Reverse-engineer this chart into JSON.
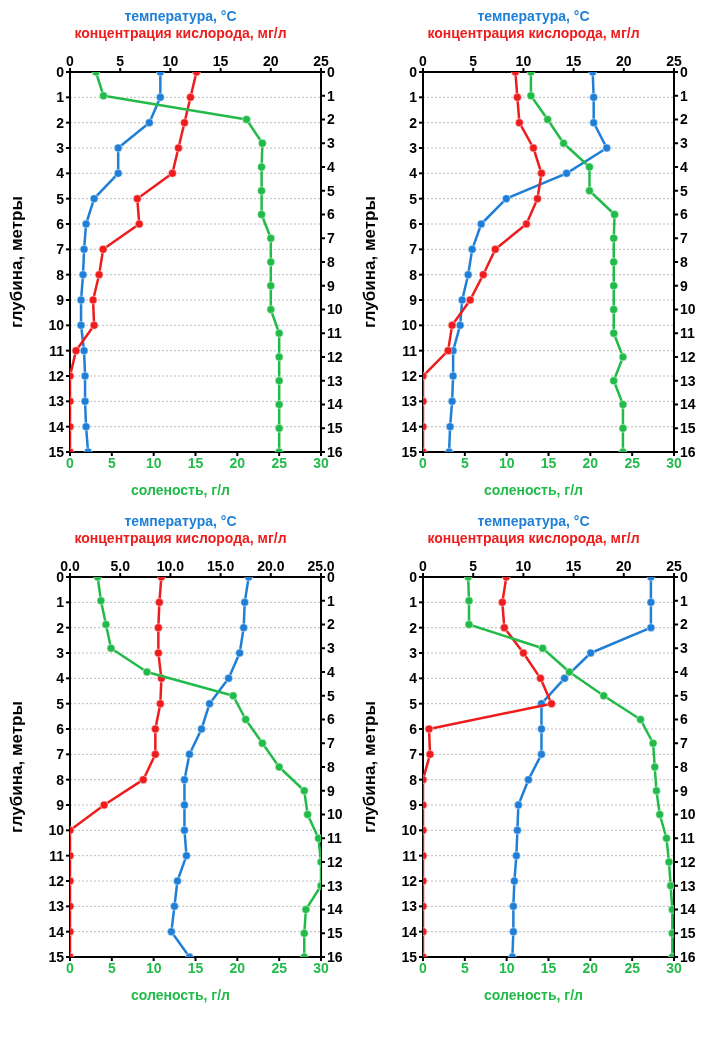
{
  "chart_data": [
    {
      "type": "line",
      "ylabel": "глубина, метры",
      "xlim": [
        0,
        30
      ],
      "xticks": [
        0,
        5,
        10,
        15,
        20,
        25,
        30
      ],
      "x2lim": [
        0,
        25
      ],
      "x2ticks": [
        0,
        5,
        10,
        15,
        20,
        25
      ],
      "ylim": [
        15,
        0
      ],
      "yticks": [
        0,
        1,
        2,
        3,
        4,
        5,
        6,
        7,
        8,
        9,
        10,
        11,
        12,
        13,
        14,
        15
      ],
      "y2lim": [
        16,
        0
      ],
      "y2ticks": [
        0,
        1,
        2,
        3,
        4,
        5,
        6,
        7,
        8,
        9,
        10,
        11,
        12,
        13,
        14,
        15,
        16
      ],
      "grid": "y",
      "marker": "circle",
      "series": [
        {
          "name": "температура, °C",
          "color": "#1f7fd6",
          "axis": "x2",
          "x": [
            9.0,
            9.0,
            7.9,
            4.8,
            4.8,
            2.4,
            1.6,
            1.4,
            1.3,
            1.1,
            1.1,
            1.4,
            1.5,
            1.5,
            1.6,
            1.8
          ],
          "values": [
            0,
            1,
            2,
            3,
            4,
            5,
            6,
            7,
            8,
            9,
            10,
            11,
            12,
            13,
            14,
            15
          ]
        },
        {
          "name": "концентрация кислорода, мг/л",
          "color": "#ee1c1c",
          "axis": "x2",
          "x": [
            12.6,
            12.0,
            11.4,
            10.8,
            10.2,
            6.7,
            6.9,
            3.3,
            2.9,
            2.3,
            2.4,
            0.6,
            0,
            0,
            0,
            0
          ],
          "values": [
            0,
            1,
            2,
            3,
            4,
            5,
            6,
            7,
            8,
            9,
            10,
            11,
            12,
            13,
            14,
            15
          ]
        },
        {
          "name": "соленость, г/л",
          "color": "#22bb4a",
          "axis": "y2",
          "x": [
            3.1,
            4.0,
            21.1,
            23.0,
            22.9,
            22.9,
            22.9,
            24.0,
            24.0,
            24.0,
            24.0,
            25.0,
            25.0,
            25.0,
            25.0,
            25.0,
            25.0
          ],
          "values": [
            0,
            1,
            2,
            3,
            4,
            5,
            6,
            7,
            8,
            9,
            10,
            11,
            12,
            13,
            14,
            15,
            16
          ]
        }
      ]
    },
    {
      "type": "line",
      "ylabel": "глубина, метры",
      "xlim": [
        0,
        30
      ],
      "xticks": [
        0,
        5,
        10,
        15,
        20,
        25,
        30
      ],
      "x2lim": [
        0,
        25
      ],
      "x2ticks": [
        0,
        5,
        10,
        15,
        20,
        25
      ],
      "ylim": [
        15,
        0
      ],
      "yticks": [
        0,
        1,
        2,
        3,
        4,
        5,
        6,
        7,
        8,
        9,
        10,
        11,
        12,
        13,
        14,
        15
      ],
      "y2lim": [
        16,
        0
      ],
      "y2ticks": [
        0,
        1,
        2,
        3,
        4,
        5,
        6,
        7,
        8,
        9,
        10,
        11,
        12,
        13,
        14,
        15,
        16
      ],
      "grid": "y",
      "marker": "circle",
      "series": [
        {
          "name": "температура, °C",
          "color": "#1f7fd6",
          "axis": "x2",
          "x": [
            16.9,
            17.0,
            17.0,
            18.3,
            14.3,
            8.3,
            5.8,
            4.9,
            4.5,
            3.9,
            3.7,
            3.0,
            3.0,
            2.9,
            2.7,
            2.6
          ],
          "values": [
            0,
            1,
            2,
            3,
            4,
            5,
            6,
            7,
            8,
            9,
            10,
            11,
            12,
            13,
            14,
            15
          ]
        },
        {
          "name": "концентрация кислорода, мг/л",
          "color": "#ee1c1c",
          "axis": "x2",
          "x": [
            9.2,
            9.4,
            9.6,
            11.0,
            11.8,
            11.4,
            10.3,
            7.2,
            6.0,
            4.7,
            2.9,
            2.5,
            0,
            0,
            0,
            0
          ],
          "values": [
            0,
            1,
            2,
            3,
            4,
            5,
            6,
            7,
            8,
            9,
            10,
            11,
            12,
            13,
            14,
            15
          ]
        },
        {
          "name": "соленость, г/л",
          "color": "#22bb4a",
          "axis": "y2",
          "x": [
            12.9,
            12.9,
            14.9,
            16.8,
            19.9,
            19.9,
            22.9,
            22.8,
            22.8,
            22.8,
            22.8,
            22.8,
            23.9,
            22.8,
            23.9,
            23.9,
            23.9
          ],
          "values": [
            0,
            1,
            2,
            3,
            4,
            5,
            6,
            7,
            8,
            9,
            10,
            11,
            12,
            13,
            14,
            15,
            16
          ]
        }
      ]
    },
    {
      "type": "line",
      "ylabel": "глубина, метры",
      "xlim": [
        0,
        30
      ],
      "xticks": [
        0,
        5,
        10,
        15,
        20,
        25,
        30
      ],
      "x2lim": [
        0,
        25
      ],
      "x2ticks": [
        {
          "value": 0,
          "label": "0.0"
        },
        {
          "value": 5,
          "label": "5.0"
        },
        {
          "value": 10,
          "label": "10.0"
        },
        {
          "value": 15,
          "label": "15.0"
        },
        {
          "value": 20,
          "label": "20.0"
        },
        {
          "value": 25,
          "label": "25.0"
        }
      ],
      "ylim": [
        15,
        0
      ],
      "yticks": [
        0,
        1,
        2,
        3,
        4,
        5,
        6,
        7,
        8,
        9,
        10,
        11,
        12,
        13,
        14,
        15
      ],
      "y2lim": [
        16,
        0
      ],
      "y2ticks": [
        0,
        1,
        2,
        3,
        4,
        5,
        6,
        7,
        8,
        9,
        10,
        11,
        12,
        13,
        14,
        15,
        16
      ],
      "grid": "y",
      "marker": "circle",
      "series": [
        {
          "name": "температура, °C",
          "color": "#1f7fd6",
          "axis": "x2",
          "x": [
            17.8,
            17.4,
            17.3,
            16.9,
            15.8,
            13.9,
            13.1,
            11.9,
            11.4,
            11.4,
            11.4,
            11.6,
            10.7,
            10.4,
            10.1,
            11.9
          ],
          "values": [
            0,
            1,
            2,
            3,
            4,
            5,
            6,
            7,
            8,
            9,
            10,
            11,
            12,
            13,
            14,
            15
          ]
        },
        {
          "name": "концентрация кислорода, мг/л",
          "color": "#ee1c1c",
          "axis": "x2",
          "x": [
            9.1,
            8.9,
            8.8,
            8.8,
            9.1,
            9.0,
            8.5,
            8.5,
            7.3,
            3.4,
            0,
            0,
            0,
            0,
            0,
            0
          ],
          "values": [
            0,
            1,
            2,
            3,
            4,
            5,
            6,
            7,
            8,
            9,
            10,
            11,
            12,
            13,
            14,
            15
          ]
        },
        {
          "name": "соленость, г/л",
          "color": "#22bb4a",
          "axis": "y2",
          "x": [
            3.3,
            3.7,
            4.3,
            4.9,
            9.2,
            19.5,
            21.0,
            23.0,
            25.0,
            28.0,
            28.4,
            29.7,
            30,
            30,
            28.2,
            28.0,
            28.0
          ],
          "values": [
            0,
            1,
            2,
            3,
            4,
            5,
            6,
            7,
            8,
            9,
            10,
            11,
            12,
            13,
            14,
            15,
            16
          ]
        }
      ]
    },
    {
      "type": "line",
      "ylabel": "глубина, метры",
      "xlim": [
        0,
        30
      ],
      "xticks": [
        0,
        5,
        10,
        15,
        20,
        25,
        30
      ],
      "x2lim": [
        0,
        25
      ],
      "x2ticks": [
        0,
        5,
        10,
        15,
        20,
        25
      ],
      "ylim": [
        15,
        0
      ],
      "yticks": [
        0,
        1,
        2,
        3,
        4,
        5,
        6,
        7,
        8,
        9,
        10,
        11,
        12,
        13,
        14,
        15
      ],
      "y2lim": [
        16,
        0
      ],
      "y2ticks": [
        0,
        1,
        2,
        3,
        4,
        5,
        6,
        7,
        8,
        9,
        10,
        11,
        12,
        13,
        14,
        15,
        16
      ],
      "grid": "y",
      "marker": "circle",
      "series": [
        {
          "name": "температура, °C",
          "color": "#1f7fd6",
          "axis": "x2",
          "x": [
            22.7,
            22.7,
            22.7,
            16.7,
            14.1,
            11.8,
            11.8,
            11.8,
            10.5,
            9.5,
            9.4,
            9.3,
            9.1,
            9.0,
            9.0,
            8.9
          ],
          "values": [
            0,
            1,
            2,
            3,
            4,
            5,
            6,
            7,
            8,
            9,
            10,
            11,
            12,
            13,
            14,
            15
          ]
        },
        {
          "name": "концентрация кислорода, мг/л",
          "color": "#ee1c1c",
          "axis": "x2",
          "x": [
            8.3,
            7.9,
            8.1,
            10.0,
            11.7,
            12.8,
            0.6,
            0.7,
            0,
            0,
            0,
            0,
            0,
            0,
            0,
            0
          ],
          "values": [
            0,
            1,
            2,
            3,
            4,
            5,
            6,
            7,
            8,
            9,
            10,
            11,
            12,
            13,
            14,
            15
          ]
        },
        {
          "name": "соленость, г/л",
          "color": "#22bb4a",
          "axis": "y2",
          "x": [
            5.4,
            5.5,
            5.5,
            14.3,
            17.5,
            21.6,
            26.0,
            27.5,
            27.7,
            27.9,
            28.3,
            29.1,
            29.4,
            29.6,
            29.8,
            29.8,
            29.8
          ],
          "values": [
            0,
            1,
            2,
            3,
            4,
            5,
            6,
            7,
            8,
            9,
            10,
            11,
            12,
            13,
            14,
            15,
            16
          ]
        }
      ]
    }
  ]
}
